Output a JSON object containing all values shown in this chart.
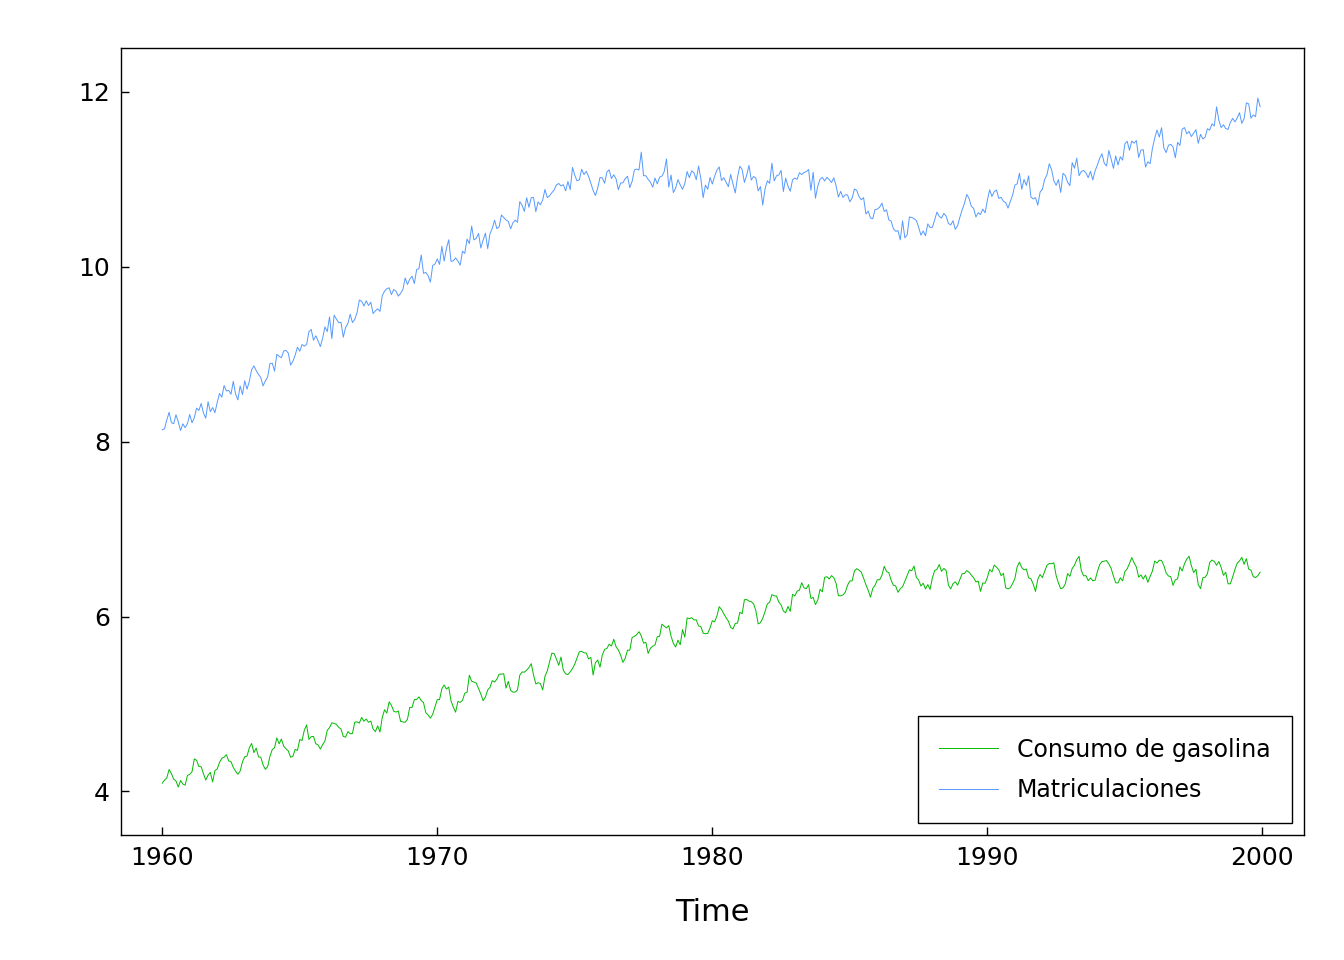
{
  "title": "",
  "xlabel": "Time",
  "ylabel": "",
  "xlim": [
    1958.5,
    2001.5
  ],
  "ylim": [
    3.5,
    12.5
  ],
  "yticks": [
    4,
    6,
    8,
    10,
    12
  ],
  "xticks": [
    1960,
    1970,
    1980,
    1990,
    2000
  ],
  "line_color_gasolina": "#00BB00",
  "line_color_matr": "#5599FF",
  "legend_labels": [
    "Consumo de gasolina",
    "Matriculaciones"
  ],
  "legend_colors": [
    "#00BB00",
    "#5599FF"
  ],
  "background_color": "#FFFFFF",
  "linewidth": 0.7,
  "start_year": 1960,
  "freq": 12,
  "n_years": 40
}
